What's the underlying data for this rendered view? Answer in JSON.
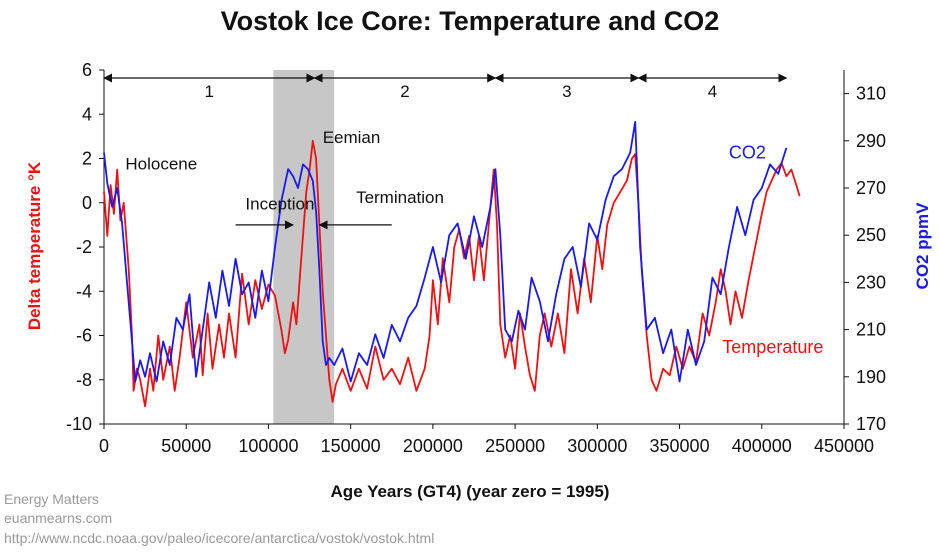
{
  "chart_data": {
    "type": "line",
    "title": "Vostok Ice Core: Temperature and CO2",
    "xlabel": "Age Years (GT4) (year zero = 1995)",
    "ylabel_left": "Delta temperature °K",
    "ylabel_right": "CO2 ppmV",
    "xlim": [
      0,
      450000
    ],
    "ylim_left": [
      -10,
      6
    ],
    "ylim_right": [
      170,
      320
    ],
    "x_ticks": [
      "0",
      "50000",
      "100000",
      "150000",
      "200000",
      "250000",
      "300000",
      "350000",
      "400000",
      "450000"
    ],
    "y_left_ticks": [
      "-10",
      "-8",
      "-6",
      "-4",
      "-2",
      "0",
      "2",
      "4",
      "6"
    ],
    "y_right_ticks": [
      "170",
      "190",
      "210",
      "230",
      "250",
      "270",
      "290",
      "310"
    ],
    "shaded_region": [
      103000,
      140000
    ],
    "periods": [
      {
        "label": "1",
        "x": [
          0,
          128000
        ]
      },
      {
        "label": "2",
        "x": [
          128000,
          238000
        ]
      },
      {
        "label": "3",
        "x": [
          238000,
          325000
        ]
      },
      {
        "label": "4",
        "x": [
          325000,
          415000
        ]
      }
    ],
    "annotations": [
      {
        "text": "Holocene",
        "x": 13000,
        "y": 1.5
      },
      {
        "text": "Eemian",
        "x": 133000,
        "y": 2.7
      },
      {
        "text": "Inception",
        "x": 86000,
        "y": -0.3
      },
      {
        "text": "Termination",
        "x": 180000,
        "y": 0
      },
      {
        "text": "CO2",
        "x": 380000,
        "y": 2
      },
      {
        "text": "Temperature",
        "x": 376000,
        "y": -6.8
      }
    ],
    "arrows": [
      {
        "from_x": 80000,
        "to_x": 115000,
        "y": -1
      },
      {
        "from_x": 175000,
        "to_x": 131000,
        "y": -1
      }
    ],
    "series": [
      {
        "name": "Temperature",
        "axis": "left",
        "color": "#ee1111",
        "x": [
          0,
          2000,
          4000,
          6000,
          8000,
          10000,
          12000,
          15000,
          17000,
          18000,
          20000,
          22000,
          25000,
          28000,
          30000,
          33000,
          36000,
          40000,
          43000,
          46000,
          50000,
          54000,
          58000,
          60000,
          63000,
          66000,
          70000,
          73000,
          76000,
          80000,
          84000,
          88000,
          92000,
          96000,
          100000,
          104000,
          108000,
          110000,
          112000,
          115000,
          117000,
          120000,
          123000,
          125000,
          127000,
          129000,
          131000,
          133000,
          135000,
          137000,
          139000,
          141000,
          145000,
          150000,
          155000,
          160000,
          165000,
          170000,
          175000,
          180000,
          185000,
          190000,
          195000,
          198000,
          200000,
          203000,
          206000,
          210000,
          213000,
          216000,
          219000,
          222000,
          225000,
          228000,
          231000,
          234000,
          237000,
          239000,
          241000,
          244000,
          247000,
          250000,
          253000,
          256000,
          259000,
          262000,
          265000,
          268000,
          272000,
          276000,
          280000,
          284000,
          288000,
          292000,
          296000,
          300000,
          303000,
          306000,
          310000,
          314000,
          318000,
          321000,
          323000,
          325000,
          327000,
          330000,
          333000,
          336000,
          340000,
          344000,
          348000,
          352000,
          356000,
          360000,
          364000,
          368000,
          372000,
          375000,
          378000,
          381000,
          384000,
          388000,
          392000,
          396000,
          400000,
          403000,
          406000,
          409000,
          412000,
          415000,
          418000,
          421000,
          423000
        ],
        "values": [
          0.5,
          -1.5,
          0.8,
          -0.5,
          1.5,
          -0.8,
          0,
          -3,
          -6,
          -8.5,
          -7.5,
          -8,
          -9.2,
          -7.5,
          -8.5,
          -6,
          -8,
          -6.5,
          -8.5,
          -7,
          -4.5,
          -7,
          -5.5,
          -7.8,
          -5,
          -7.5,
          -5.5,
          -7,
          -5,
          -7,
          -3.2,
          -5.5,
          -3.5,
          -4.8,
          -3.7,
          -4.2,
          -5.8,
          -6.8,
          -6.2,
          -4.5,
          -5.5,
          -2.5,
          0.5,
          1.5,
          2.8,
          2,
          -1,
          -4,
          -6,
          -8,
          -9,
          -8.2,
          -7.5,
          -8.5,
          -7.5,
          -8.4,
          -6.5,
          -8,
          -7.5,
          -8.2,
          -7,
          -8.5,
          -7.5,
          -6,
          -3.5,
          -5.5,
          -2.5,
          -4.5,
          -2,
          -1.2,
          -2.5,
          -1.5,
          -3.5,
          -1.5,
          -3.5,
          -1,
          1.5,
          -1,
          -5.5,
          -7,
          -6,
          -7.5,
          -5,
          -6.5,
          -7.8,
          -8.5,
          -6,
          -5,
          -6.5,
          -5,
          -6.8,
          -3,
          -5,
          -2.5,
          -4.5,
          -1.5,
          -3,
          -1,
          0,
          0.5,
          1,
          2,
          2.2,
          0,
          -3,
          -6,
          -8,
          -8.5,
          -7.5,
          -7.8,
          -6.5,
          -7.5,
          -6.5,
          -7.2,
          -5,
          -6,
          -4.5,
          -3,
          -4,
          -5.5,
          -4,
          -5.2,
          -3.5,
          -2,
          -0.5,
          0.5,
          1,
          1.5,
          1.8,
          1.2,
          1.5,
          0.8,
          0.3
        ]
      },
      {
        "name": "CO2",
        "axis": "right",
        "color": "#1a1aee",
        "x": [
          0,
          2000,
          5000,
          8000,
          11000,
          14000,
          17000,
          19000,
          22000,
          25000,
          28000,
          32000,
          36000,
          40000,
          44000,
          48000,
          52000,
          56000,
          60000,
          64000,
          68000,
          72000,
          76000,
          80000,
          84000,
          88000,
          92000,
          96000,
          100000,
          104000,
          108000,
          112000,
          115000,
          118000,
          121000,
          124000,
          127000,
          129000,
          131000,
          133000,
          135000,
          137000,
          140000,
          145000,
          150000,
          155000,
          160000,
          165000,
          170000,
          175000,
          180000,
          185000,
          190000,
          195000,
          200000,
          205000,
          210000,
          215000,
          220000,
          225000,
          230000,
          235000,
          238000,
          241000,
          244000,
          248000,
          252000,
          256000,
          260000,
          265000,
          270000,
          275000,
          280000,
          285000,
          290000,
          295000,
          300000,
          305000,
          310000,
          315000,
          320000,
          323000,
          326000,
          330000,
          335000,
          340000,
          345000,
          350000,
          355000,
          360000,
          365000,
          370000,
          375000,
          380000,
          385000,
          390000,
          395000,
          400000,
          405000,
          410000,
          415000
        ],
        "values": [
          285,
          272,
          262,
          270,
          255,
          230,
          205,
          188,
          197,
          190,
          200,
          188,
          205,
          195,
          215,
          210,
          225,
          190,
          210,
          230,
          215,
          235,
          220,
          240,
          225,
          230,
          215,
          235,
          222,
          245,
          265,
          278,
          275,
          270,
          280,
          278,
          273,
          260,
          235,
          205,
          195,
          198,
          195,
          202,
          188,
          200,
          195,
          208,
          198,
          212,
          205,
          215,
          220,
          232,
          245,
          230,
          250,
          255,
          240,
          258,
          245,
          262,
          278,
          250,
          210,
          205,
          218,
          210,
          232,
          222,
          205,
          225,
          240,
          245,
          228,
          255,
          248,
          265,
          275,
          278,
          285,
          298,
          245,
          210,
          215,
          200,
          210,
          188,
          210,
          195,
          205,
          232,
          225,
          245,
          262,
          250,
          265,
          270,
          280,
          276,
          287
        ]
      }
    ]
  },
  "credits": {
    "line1": "Energy Matters",
    "line2": "euanmearns.com",
    "line3": "http://www.ncdc.noaa.gov/paleo/icecore/antarctica/vostok/vostok.html"
  }
}
